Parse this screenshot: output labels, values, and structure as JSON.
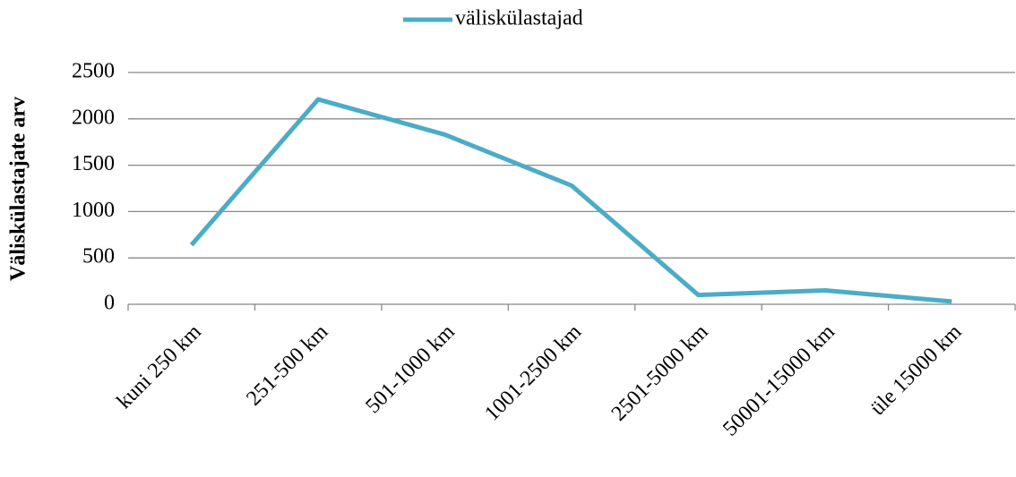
{
  "chart_data": {
    "type": "line",
    "y_label": "Väliskülastajate arv",
    "categories": [
      "kuni 250 km",
      "251-500 km",
      "501-1000 km",
      "1001-2500 km",
      "2501-5000 km",
      "50001-15000 km",
      "üle 15000 km"
    ],
    "series": [
      {
        "name": "väliskülastajad",
        "color": "#4bacc6",
        "values": [
          640,
          2210,
          1830,
          1280,
          100,
          150,
          30
        ]
      }
    ],
    "ylim": [
      0,
      2500
    ],
    "yticks": [
      0,
      500,
      1000,
      1500,
      2000,
      2500
    ],
    "grid": true,
    "legend": "top"
  }
}
